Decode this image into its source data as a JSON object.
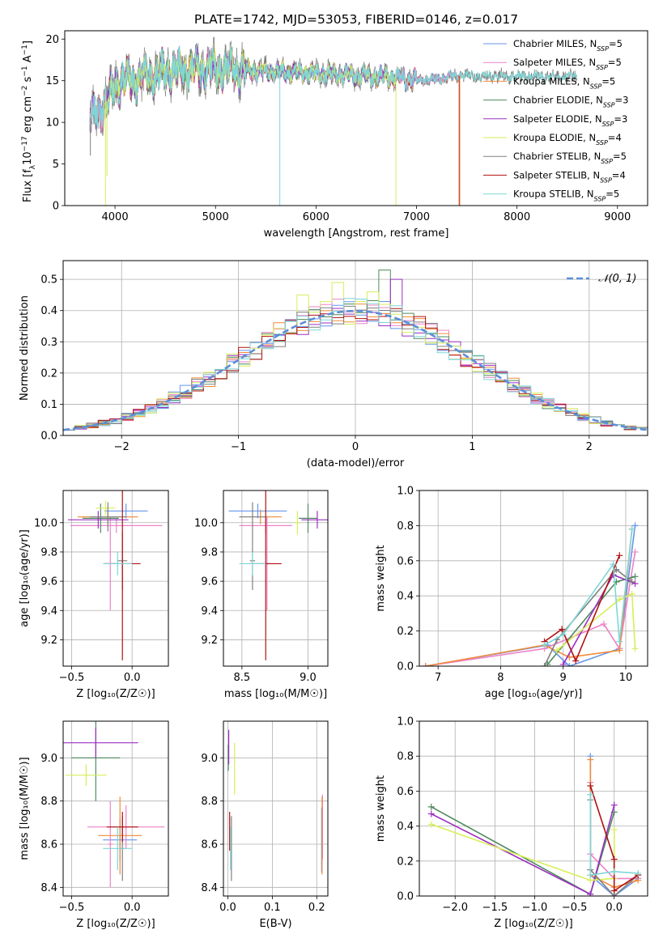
{
  "figure_title": "PLATE=1742, MJD=53053, FIBERID=0146, z=0.017",
  "series_colors": {
    "Chabrier MILES": "#6495ed",
    "Salpeter MILES": "#ee82c8",
    "Kroupa MILES": "#f08c3c",
    "Chabrier ELODIE": "#4f8a5f",
    "Salpeter ELODIE": "#9b30c0",
    "Kroupa ELODIE": "#d8ee5a",
    "Chabrier STELIB": "#808080",
    "Salpeter STELIB": "#b01010",
    "Kroupa STELIB": "#7fd6d6"
  },
  "chart_data": [
    {
      "id": "spectrum",
      "type": "line",
      "title": "PLATE=1742, MJD=53053, FIBERID=0146, z=0.017",
      "xlabel": "wavelength [Angstrom, rest frame]",
      "ylabel_parts": {
        "a": "Flux [f",
        "b": "λ",
        "c": "10",
        "d": "−17",
        "e": " erg cm",
        "f": "−2",
        "g": " s",
        "h": "−1",
        "i": " A",
        "j": "−1",
        "k": "]"
      },
      "xlim": [
        3500,
        9300
      ],
      "ylim": [
        0,
        21
      ],
      "xticks": [
        "4000",
        "5000",
        "6000",
        "7000",
        "8000",
        "9000"
      ],
      "yticks": [
        "0",
        "5",
        "10",
        "15",
        "20"
      ],
      "grid": false,
      "legend_position": "top-right",
      "legend": [
        {
          "name": "Chabrier MILES",
          "nssp": "5"
        },
        {
          "name": "Salpeter MILES",
          "nssp": "5"
        },
        {
          "name": "Kroupa MILES",
          "nssp": "5"
        },
        {
          "name": "Chabrier ELODIE",
          "nssp": "3"
        },
        {
          "name": "Salpeter ELODIE",
          "nssp": "3"
        },
        {
          "name": "Kroupa ELODIE",
          "nssp": "4"
        },
        {
          "name": "Chabrier STELIB",
          "nssp": "5"
        },
        {
          "name": "Salpeter STELIB",
          "nssp": "4"
        },
        {
          "name": "Kroupa STELIB",
          "nssp": "5"
        }
      ],
      "continuum": {
        "x": [
          3750,
          3850,
          3950,
          4000,
          4100,
          4200,
          4300,
          4400,
          4500,
          4600,
          4800,
          5000,
          5200,
          5400,
          5600,
          5800,
          6000,
          6200,
          6400,
          6600,
          6800,
          7000,
          7200,
          7400,
          7600,
          7800,
          8000,
          8200,
          8400,
          8600,
          8800
        ],
        "y": [
          10.5,
          11.5,
          13.0,
          14.5,
          15.2,
          15.0,
          15.5,
          15.8,
          16.1,
          16.2,
          16.4,
          16.5,
          16.3,
          16.2,
          16.1,
          16.0,
          15.9,
          15.8,
          15.6,
          15.5,
          15.4,
          15.1,
          15.2,
          15.6,
          15.6,
          15.6,
          15.5,
          15.5,
          15.5,
          15.5,
          15.3
        ]
      },
      "series_xrange": {
        "Chabrier MILES": [
          3750,
          7420
        ],
        "Salpeter MILES": [
          3750,
          7420
        ],
        "Kroupa MILES": [
          3750,
          7420
        ],
        "Chabrier ELODIE": [
          3900,
          6800
        ],
        "Salpeter ELODIE": [
          3900,
          6800
        ],
        "Kroupa ELODIE": [
          3900,
          6800
        ],
        "Chabrier STELIB": [
          3750,
          8600
        ],
        "Salpeter STELIB": [
          3750,
          7420
        ],
        "Kroupa STELIB": [
          3750,
          8600
        ]
      }
    },
    {
      "id": "residuals",
      "type": "histogram",
      "xlabel": "(data-model)/error",
      "ylabel": "Normed distribution",
      "xlim": [
        -2.5,
        2.5
      ],
      "ylim": [
        0,
        0.56
      ],
      "xticks": [
        "−2",
        "−1",
        "0",
        "1",
        "2"
      ],
      "yticks": [
        "0.0",
        "0.1",
        "0.2",
        "0.3",
        "0.4",
        "0.5"
      ],
      "grid": true,
      "legend_position": "top-right",
      "legend_label": "𝒩(0, 1)",
      "normal_curve_color": "#5b8ed6",
      "bin_width": 0.1,
      "bin_start": -2.5,
      "series_names": [
        "Chabrier MILES",
        "Salpeter MILES",
        "Kroupa MILES",
        "Chabrier ELODIE",
        "Salpeter ELODIE",
        "Kroupa ELODIE",
        "Chabrier STELIB",
        "Salpeter STELIB",
        "Kroupa STELIB"
      ],
      "highlights": [
        {
          "x0": 0.2,
          "x1": 0.3,
          "y": 0.53,
          "series": "Chabrier ELODIE"
        },
        {
          "x0": 0.3,
          "x1": 0.4,
          "y": 0.5,
          "series": "Salpeter ELODIE"
        },
        {
          "x0": -0.2,
          "x1": -0.1,
          "y": 0.49,
          "series": "Kroupa ELODIE"
        },
        {
          "x0": -0.5,
          "x1": -0.4,
          "y": 0.45,
          "series": "Kroupa ELODIE"
        },
        {
          "x0": 0.1,
          "x1": 0.2,
          "y": 0.46,
          "series": "Kroupa ELODIE"
        }
      ]
    },
    {
      "id": "z-age",
      "type": "errorbar",
      "xlabel": "Z [log₁₀(Z/Z☉)]",
      "ylabel": "age  [log₁₀(age/yr)]",
      "xlim": [
        -0.57,
        0.3
      ],
      "ylim": [
        9.02,
        10.22
      ],
      "xticks": [
        "−0.5",
        "0.0"
      ],
      "yticks": [
        "9.2",
        "9.4",
        "9.6",
        "9.8",
        "10.0"
      ],
      "grid": true,
      "points": [
        {
          "series": "Chabrier MILES",
          "x": -0.05,
          "xerr": 0.18,
          "y": 10.08,
          "yerr": 0.05
        },
        {
          "series": "Salpeter MILES",
          "x": -0.13,
          "xerr": 0.38,
          "y": 9.98,
          "yerr": 0.05
        },
        {
          "series": "Salpeter MILES",
          "x": -0.18,
          "xerr": 0.04,
          "y": 9.72,
          "yerr": 0.32
        },
        {
          "series": "Kroupa MILES",
          "x": -0.2,
          "xerr": 0.25,
          "y": 10.04,
          "yerr": 0.05
        },
        {
          "series": "Chabrier ELODIE",
          "x": -0.26,
          "xerr": 0.15,
          "y": 10.03,
          "yerr": 0.1
        },
        {
          "series": "Salpeter ELODIE",
          "x": -0.28,
          "xerr": 0.25,
          "y": 10.02,
          "yerr": 0.06
        },
        {
          "series": "Kroupa ELODIE",
          "x": -0.22,
          "xerr": 0.08,
          "y": 10.1,
          "yerr": 0.05
        },
        {
          "series": "Chabrier STELIB",
          "x": -0.2,
          "xerr": 0.15,
          "y": 10.04,
          "yerr": 0.1
        },
        {
          "series": "Chabrier STELIB",
          "x": -0.08,
          "xerr": 0.04,
          "y": 9.74,
          "yerr": 0.2
        },
        {
          "series": "Salpeter STELIB",
          "x": -0.08,
          "xerr": 0.15,
          "y": 9.72,
          "yerr": 0.66
        },
        {
          "series": "Kroupa STELIB",
          "x": -0.12,
          "xerr": 0.12,
          "y": 9.72,
          "yerr": 0.08
        }
      ]
    },
    {
      "id": "mass-age",
      "type": "errorbar",
      "xlabel": "mass [log₁₀(M/M☉)]",
      "ylabel": "",
      "xlim": [
        8.36,
        9.15
      ],
      "ylim": [
        9.02,
        10.22
      ],
      "xticks": [
        "8.5",
        "9.0"
      ],
      "yticks": [
        "9.2",
        "9.4",
        "9.6",
        "9.8",
        "10.0"
      ],
      "grid": true,
      "points": [
        {
          "series": "Chabrier MILES",
          "x": 8.62,
          "xerr": 0.22,
          "y": 10.08,
          "yerr": 0.05
        },
        {
          "series": "Salpeter MILES",
          "x": 8.68,
          "xerr": 0.2,
          "y": 9.98,
          "yerr": 0.05
        },
        {
          "series": "Salpeter MILES",
          "x": 8.69,
          "xerr": 0.03,
          "y": 9.72,
          "yerr": 0.32
        },
        {
          "series": "Kroupa MILES",
          "x": 8.64,
          "xerr": 0.16,
          "y": 10.04,
          "yerr": 0.05
        },
        {
          "series": "Chabrier ELODIE",
          "x": 9.0,
          "xerr": 0.07,
          "y": 10.03,
          "yerr": 0.1
        },
        {
          "series": "Salpeter ELODIE",
          "x": 9.07,
          "xerr": 0.12,
          "y": 10.02,
          "yerr": 0.06
        },
        {
          "series": "Kroupa ELODIE",
          "x": 8.92,
          "xerr": 0.02,
          "y": 10.0,
          "yerr": 0.08
        },
        {
          "series": "Chabrier STELIB",
          "x": 8.58,
          "xerr": 0.1,
          "y": 10.04,
          "yerr": 0.1
        },
        {
          "series": "Chabrier STELIB",
          "x": 8.58,
          "xerr": 0.02,
          "y": 9.74,
          "yerr": 0.2
        },
        {
          "series": "Salpeter STELIB",
          "x": 8.68,
          "xerr": 0.12,
          "y": 9.72,
          "yerr": 0.66
        },
        {
          "series": "Kroupa STELIB",
          "x": 8.58,
          "xerr": 0.1,
          "y": 9.72,
          "yerr": 0.08
        }
      ]
    },
    {
      "id": "age-weight",
      "type": "line",
      "xlabel": "age  [log₁₀(age/yr)]",
      "ylabel": "mass weight",
      "xlim": [
        6.7,
        10.35
      ],
      "ylim": [
        0,
        1
      ],
      "xticks": [
        "7",
        "8",
        "9",
        "10"
      ],
      "yticks": [
        "0.0",
        "0.2",
        "0.4",
        "0.6",
        "0.8",
        "1.0"
      ],
      "grid": true,
      "series": [
        {
          "name": "Chabrier MILES",
          "x": [
            6.8,
            8.75,
            9.1,
            9.9,
            10.15
          ],
          "y": [
            0.0,
            0.12,
            0.0,
            0.1,
            0.8
          ]
        },
        {
          "name": "Salpeter MILES",
          "x": [
            6.8,
            8.7,
            9.65,
            9.9,
            10.15
          ],
          "y": [
            0.0,
            0.1,
            0.24,
            0.1,
            0.65
          ]
        },
        {
          "name": "Kroupa MILES",
          "x": [
            6.8,
            8.7,
            9.1,
            9.9,
            10.1
          ],
          "y": [
            0.0,
            0.12,
            0.05,
            0.09,
            0.78
          ]
        },
        {
          "name": "Chabrier ELODIE",
          "x": [
            8.75,
            9.85,
            10.15
          ],
          "y": [
            0.01,
            0.48,
            0.51
          ]
        },
        {
          "name": "Salpeter ELODIE",
          "x": [
            9.0,
            9.8,
            10.15
          ],
          "y": [
            0.01,
            0.52,
            0.47
          ]
        },
        {
          "name": "Kroupa ELODIE",
          "x": [
            8.9,
            9.9,
            10.1,
            10.15
          ],
          "y": [
            0.09,
            0.38,
            0.41,
            0.1
          ]
        },
        {
          "name": "Chabrier STELIB",
          "x": [
            8.7,
            8.9,
            9.85,
            10.1
          ],
          "y": [
            0.0,
            0.15,
            0.55,
            0.48
          ]
        },
        {
          "name": "Salpeter STELIB",
          "x": [
            8.7,
            8.98,
            9.2,
            9.9
          ],
          "y": [
            0.14,
            0.21,
            0.03,
            0.63
          ]
        },
        {
          "name": "Kroupa STELIB",
          "x": [
            8.7,
            9.0,
            9.8,
            9.9,
            10.1
          ],
          "y": [
            0.12,
            0.18,
            0.58,
            0.14,
            0.78
          ]
        }
      ]
    },
    {
      "id": "z-mass",
      "type": "errorbar",
      "xlabel": "Z [log₁₀(Z/Z☉)]",
      "ylabel": "mass [log₁₀(M/M☉)]",
      "xlim": [
        -0.57,
        0.3
      ],
      "ylim": [
        8.36,
        9.17
      ],
      "xticks": [
        "−0.5",
        "0.0"
      ],
      "yticks": [
        "8.4",
        "8.6",
        "8.8",
        "9.0"
      ],
      "grid": true,
      "points": [
        {
          "series": "Chabrier MILES",
          "x": -0.1,
          "xerr": 0.14,
          "y": 8.62,
          "yerr": 0.1
        },
        {
          "series": "Salpeter MILES",
          "x": -0.05,
          "xerr": 0.32,
          "y": 8.68,
          "yerr": 0.1
        },
        {
          "series": "Salpeter MILES",
          "x": -0.18,
          "xerr": 0.02,
          "y": 8.6,
          "yerr": 0.2
        },
        {
          "series": "Kroupa MILES",
          "x": -0.1,
          "xerr": 0.18,
          "y": 8.64,
          "yerr": 0.18
        },
        {
          "series": "Chabrier ELODIE",
          "x": -0.3,
          "xerr": 0.2,
          "y": 9.0,
          "yerr": 0.2
        },
        {
          "series": "Salpeter ELODIE",
          "x": -0.3,
          "xerr": 0.35,
          "y": 9.07,
          "yerr": 0.07
        },
        {
          "series": "Kroupa ELODIE",
          "x": -0.38,
          "xerr": 0.17,
          "y": 8.92,
          "yerr": 0.05
        },
        {
          "series": "Chabrier STELIB",
          "x": -0.08,
          "xerr": 0.02,
          "y": 8.58,
          "yerr": 0.15
        },
        {
          "series": "Salpeter STELIB",
          "x": -0.08,
          "xerr": 0.13,
          "y": 8.68,
          "yerr": 0.07
        },
        {
          "series": "Kroupa STELIB",
          "x": -0.12,
          "xerr": 0.12,
          "y": 8.58,
          "yerr": 0.1
        }
      ]
    },
    {
      "id": "ebv-mass",
      "type": "errorbar",
      "xlabel": "E(B-V)",
      "ylabel": "",
      "xlim": [
        -0.01,
        0.225
      ],
      "ylim": [
        8.36,
        9.17
      ],
      "xticks": [
        "0.0",
        "0.1",
        "0.2"
      ],
      "yticks": [
        "8.4",
        "8.6",
        "8.8",
        "9.0"
      ],
      "grid": true,
      "points": [
        {
          "series": "Chabrier MILES",
          "x": 0.211,
          "xerr": 0,
          "y": 8.62,
          "yerr": 0.15
        },
        {
          "series": "Salpeter MILES",
          "x": 0.213,
          "xerr": 0,
          "y": 8.68,
          "yerr": 0.15
        },
        {
          "series": "Kroupa MILES",
          "x": 0.212,
          "xerr": 0,
          "y": 8.64,
          "yerr": 0.18
        },
        {
          "series": "Chabrier ELODIE",
          "x": 0.001,
          "xerr": 0,
          "y": 9.0,
          "yerr": 0.06
        },
        {
          "series": "Salpeter ELODIE",
          "x": 0.002,
          "xerr": 0,
          "y": 9.05,
          "yerr": 0.08
        },
        {
          "series": "Kroupa ELODIE",
          "x": 0.015,
          "xerr": 0,
          "y": 8.95,
          "yerr": 0.12
        },
        {
          "series": "Chabrier STELIB",
          "x": 0.008,
          "xerr": 0,
          "y": 8.58,
          "yerr": 0.15
        },
        {
          "series": "Salpeter STELIB",
          "x": 0.004,
          "xerr": 0,
          "y": 8.66,
          "yerr": 0.09
        },
        {
          "series": "Kroupa STELIB",
          "x": 0.006,
          "xerr": 0,
          "y": 8.58,
          "yerr": 0.1
        }
      ]
    },
    {
      "id": "z-weight",
      "type": "line",
      "xlabel": "Z [log₁₀(Z/Z☉)]",
      "ylabel": "mass weight",
      "xlim": [
        -2.45,
        0.42
      ],
      "ylim": [
        0,
        1
      ],
      "xticks": [
        "−2.0",
        "−1.5",
        "−1.0",
        "−0.5",
        "0.0"
      ],
      "yticks": [
        "0.0",
        "0.2",
        "0.4",
        "0.6",
        "0.8",
        "1.0"
      ],
      "grid": true,
      "series": [
        {
          "name": "Chabrier MILES",
          "x": [
            -0.3,
            -0.3,
            0.0,
            0.3
          ],
          "y": [
            0.8,
            0.12,
            0.0,
            0.1
          ]
        },
        {
          "name": "Salpeter MILES",
          "x": [
            -0.3,
            -0.3,
            0.0,
            0.3
          ],
          "y": [
            0.65,
            0.24,
            0.1,
            0.1
          ]
        },
        {
          "name": "Kroupa MILES",
          "x": [
            -0.3,
            -0.3,
            0.0,
            0.3
          ],
          "y": [
            0.78,
            0.12,
            0.05,
            0.09
          ]
        },
        {
          "name": "Chabrier ELODIE",
          "x": [
            -2.3,
            -0.3,
            0.0
          ],
          "y": [
            0.51,
            0.01,
            0.48
          ]
        },
        {
          "name": "Salpeter ELODIE",
          "x": [
            -2.3,
            -0.3,
            0.0
          ],
          "y": [
            0.47,
            0.01,
            0.52
          ]
        },
        {
          "name": "Kroupa ELODIE",
          "x": [
            -2.3,
            -0.3,
            0.0,
            0.0
          ],
          "y": [
            0.41,
            0.09,
            0.1,
            0.38
          ]
        },
        {
          "name": "Chabrier STELIB",
          "x": [
            -0.3,
            -0.3,
            0.0,
            0.3
          ],
          "y": [
            0.55,
            0.15,
            0.0,
            0.12
          ]
        },
        {
          "name": "Salpeter STELIB",
          "x": [
            -0.3,
            0.0,
            0.0,
            0.3
          ],
          "y": [
            0.63,
            0.21,
            0.03,
            0.12
          ]
        },
        {
          "name": "Kroupa STELIB",
          "x": [
            -0.3,
            -0.3,
            0.0,
            0.3
          ],
          "y": [
            0.58,
            0.12,
            0.14,
            0.13
          ]
        }
      ]
    }
  ]
}
